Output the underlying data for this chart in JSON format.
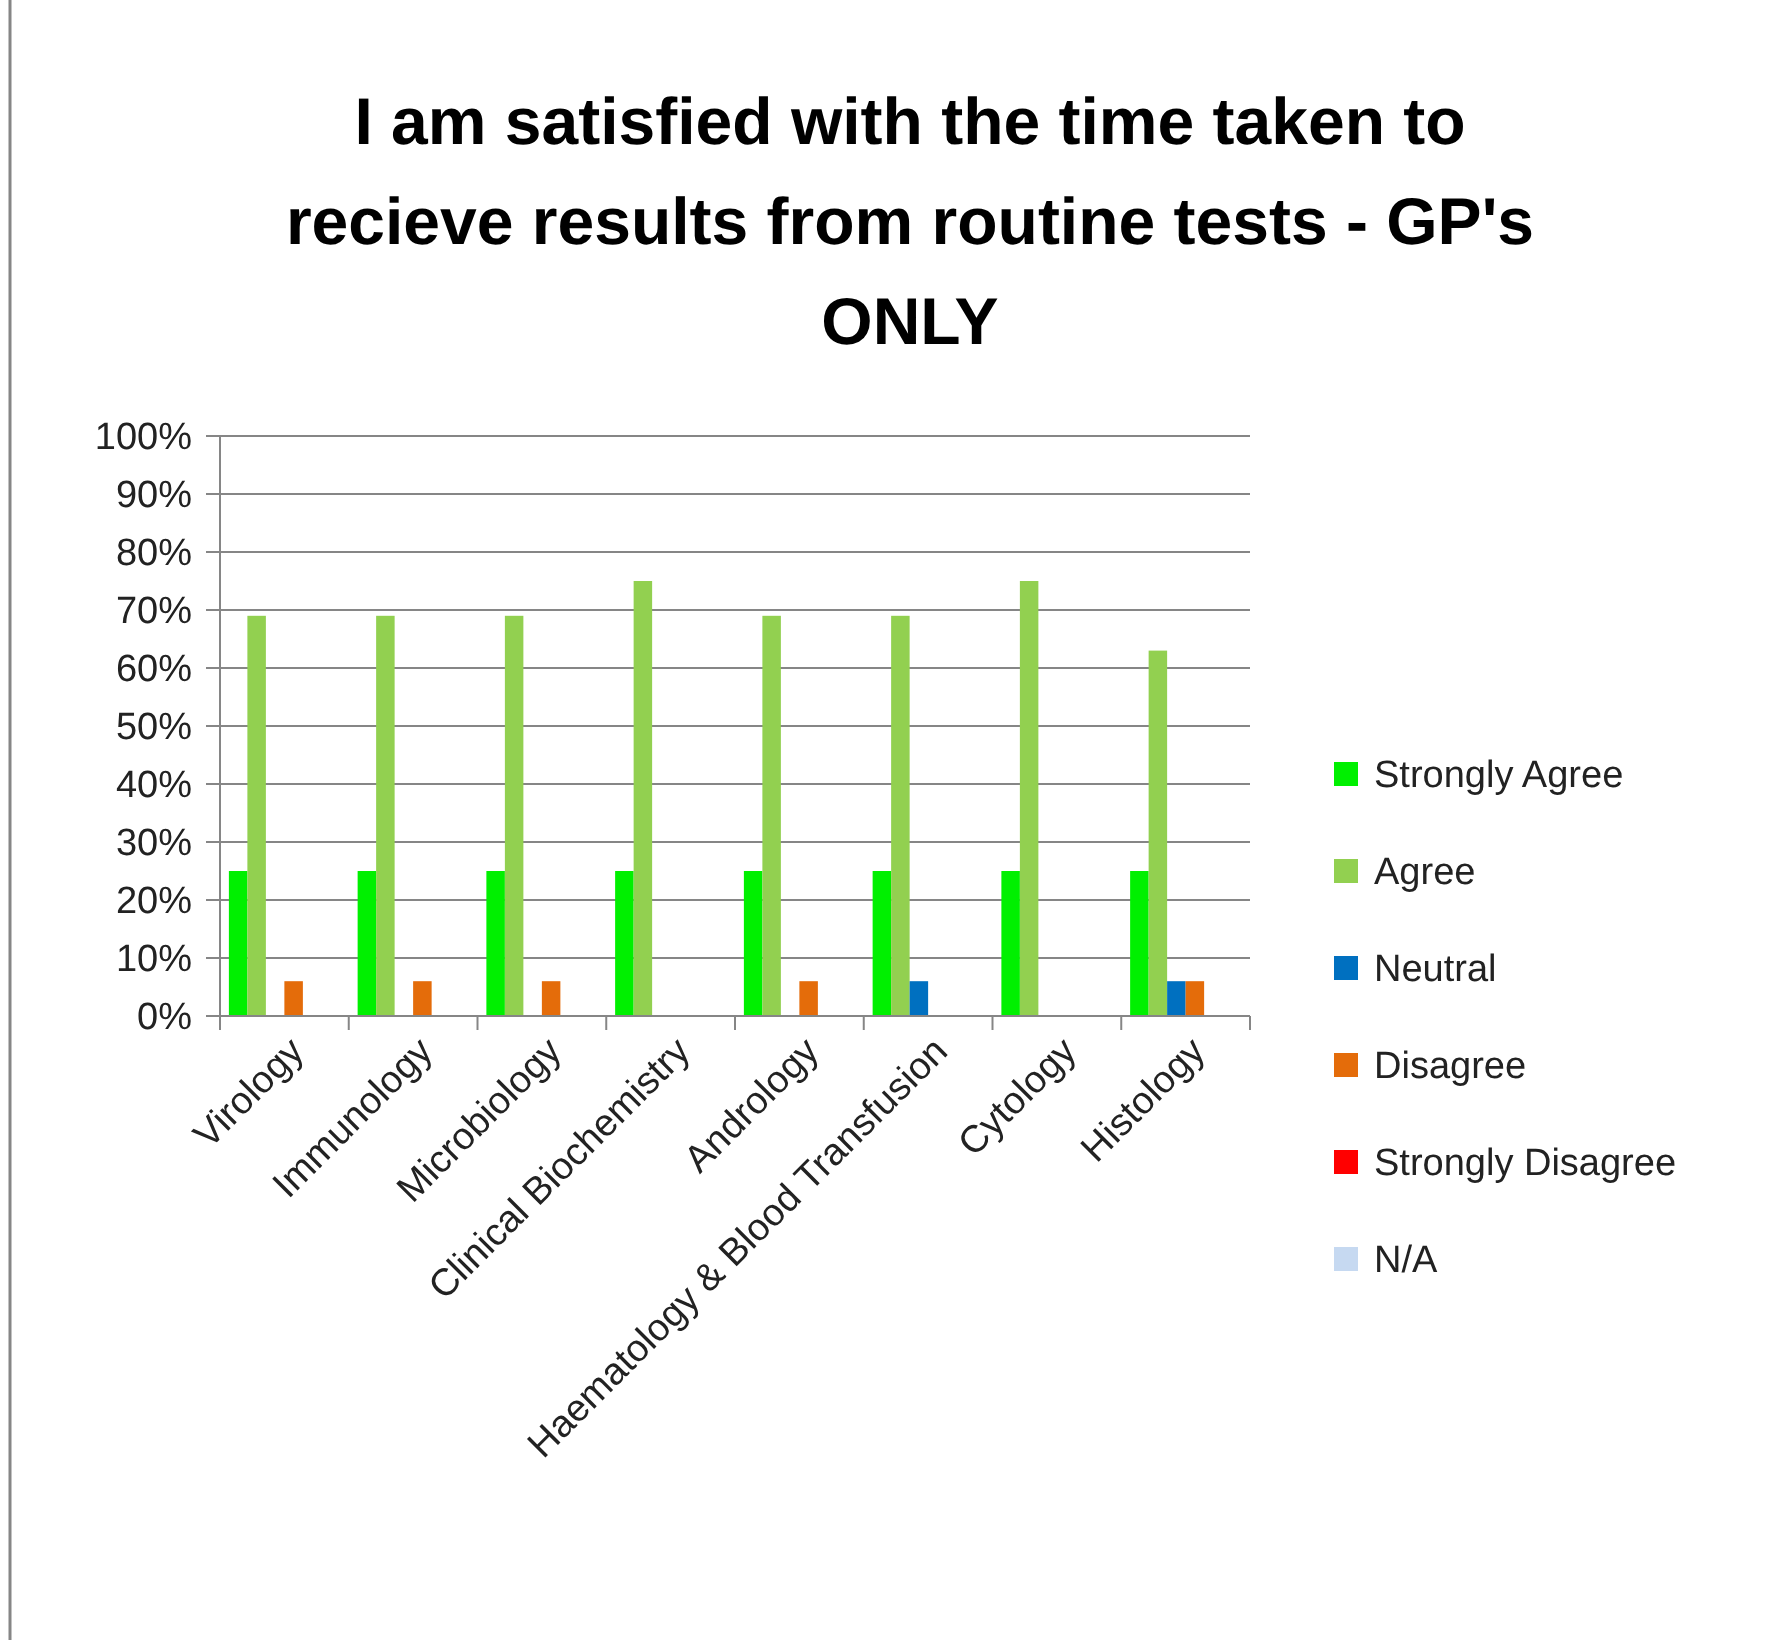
{
  "chart_data": {
    "type": "bar",
    "title": "I am satisfied with the time taken to recieve results from routine tests - GP's ONLY",
    "categories": [
      "Virology",
      "Immunology",
      "Microbiology",
      "Clinical Biochemistry",
      "Andrology",
      "Haematology & Blood Transfusion",
      "Cytology",
      "Histology"
    ],
    "series": [
      {
        "name": "Strongly Agree",
        "color": "#00f000",
        "values": [
          25,
          25,
          25,
          25,
          25,
          25,
          25,
          25
        ]
      },
      {
        "name": "Agree",
        "color": "#92d050",
        "values": [
          69,
          69,
          69,
          75,
          69,
          69,
          75,
          63
        ]
      },
      {
        "name": "Neutral",
        "color": "#0070c0",
        "values": [
          0,
          0,
          0,
          0,
          0,
          6,
          0,
          6
        ]
      },
      {
        "name": "Disagree",
        "color": "#e46c0a",
        "values": [
          6,
          6,
          6,
          0,
          6,
          0,
          0,
          6
        ]
      },
      {
        "name": "Strongly Disagree",
        "color": "#ff0000",
        "values": [
          0,
          0,
          0,
          0,
          0,
          0,
          0,
          0
        ]
      },
      {
        "name": "N/A",
        "color": "#c6d9f1",
        "values": [
          0,
          0,
          0,
          0,
          0,
          0,
          0,
          0
        ]
      }
    ],
    "ylim": [
      0,
      100
    ],
    "yticks": [
      {
        "value": 0,
        "label": "0%"
      },
      {
        "value": 10,
        "label": "10%"
      },
      {
        "value": 20,
        "label": "20%"
      },
      {
        "value": 30,
        "label": "30%"
      },
      {
        "value": 40,
        "label": "40%"
      },
      {
        "value": 50,
        "label": "50%"
      },
      {
        "value": 60,
        "label": "60%"
      },
      {
        "value": 70,
        "label": "70%"
      },
      {
        "value": 80,
        "label": "80%"
      },
      {
        "value": 90,
        "label": "90%"
      },
      {
        "value": 100,
        "label": "100%"
      }
    ],
    "grid": "y",
    "legend": "right"
  }
}
